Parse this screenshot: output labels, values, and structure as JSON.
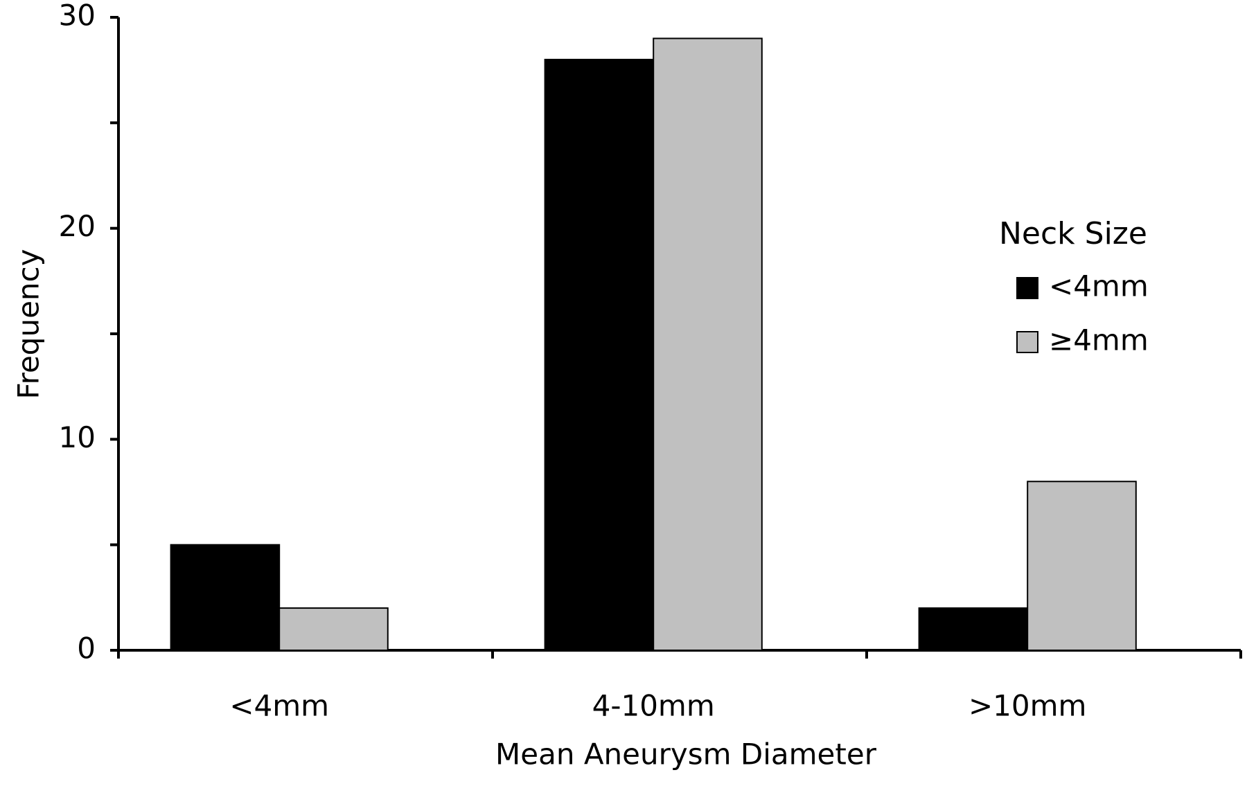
{
  "chart_data": {
    "type": "bar",
    "x_label": "Mean Aneurysm Diameter",
    "y_label": "Frequency",
    "categories": [
      "<4mm",
      "4-10mm",
      ">10mm"
    ],
    "legend_title": "Neck Size",
    "legend_position": "right",
    "series": [
      {
        "name": "<4mm",
        "color": "#000000",
        "values": [
          5,
          28,
          2
        ]
      },
      {
        "name": "≥4mm",
        "color": "#c0c0c0",
        "values": [
          2,
          29,
          8
        ]
      }
    ],
    "ylim": [
      0,
      30
    ],
    "yticks": [
      0,
      10,
      20,
      30
    ],
    "minor_yticks": [
      5,
      15,
      25
    ],
    "grid": false
  }
}
